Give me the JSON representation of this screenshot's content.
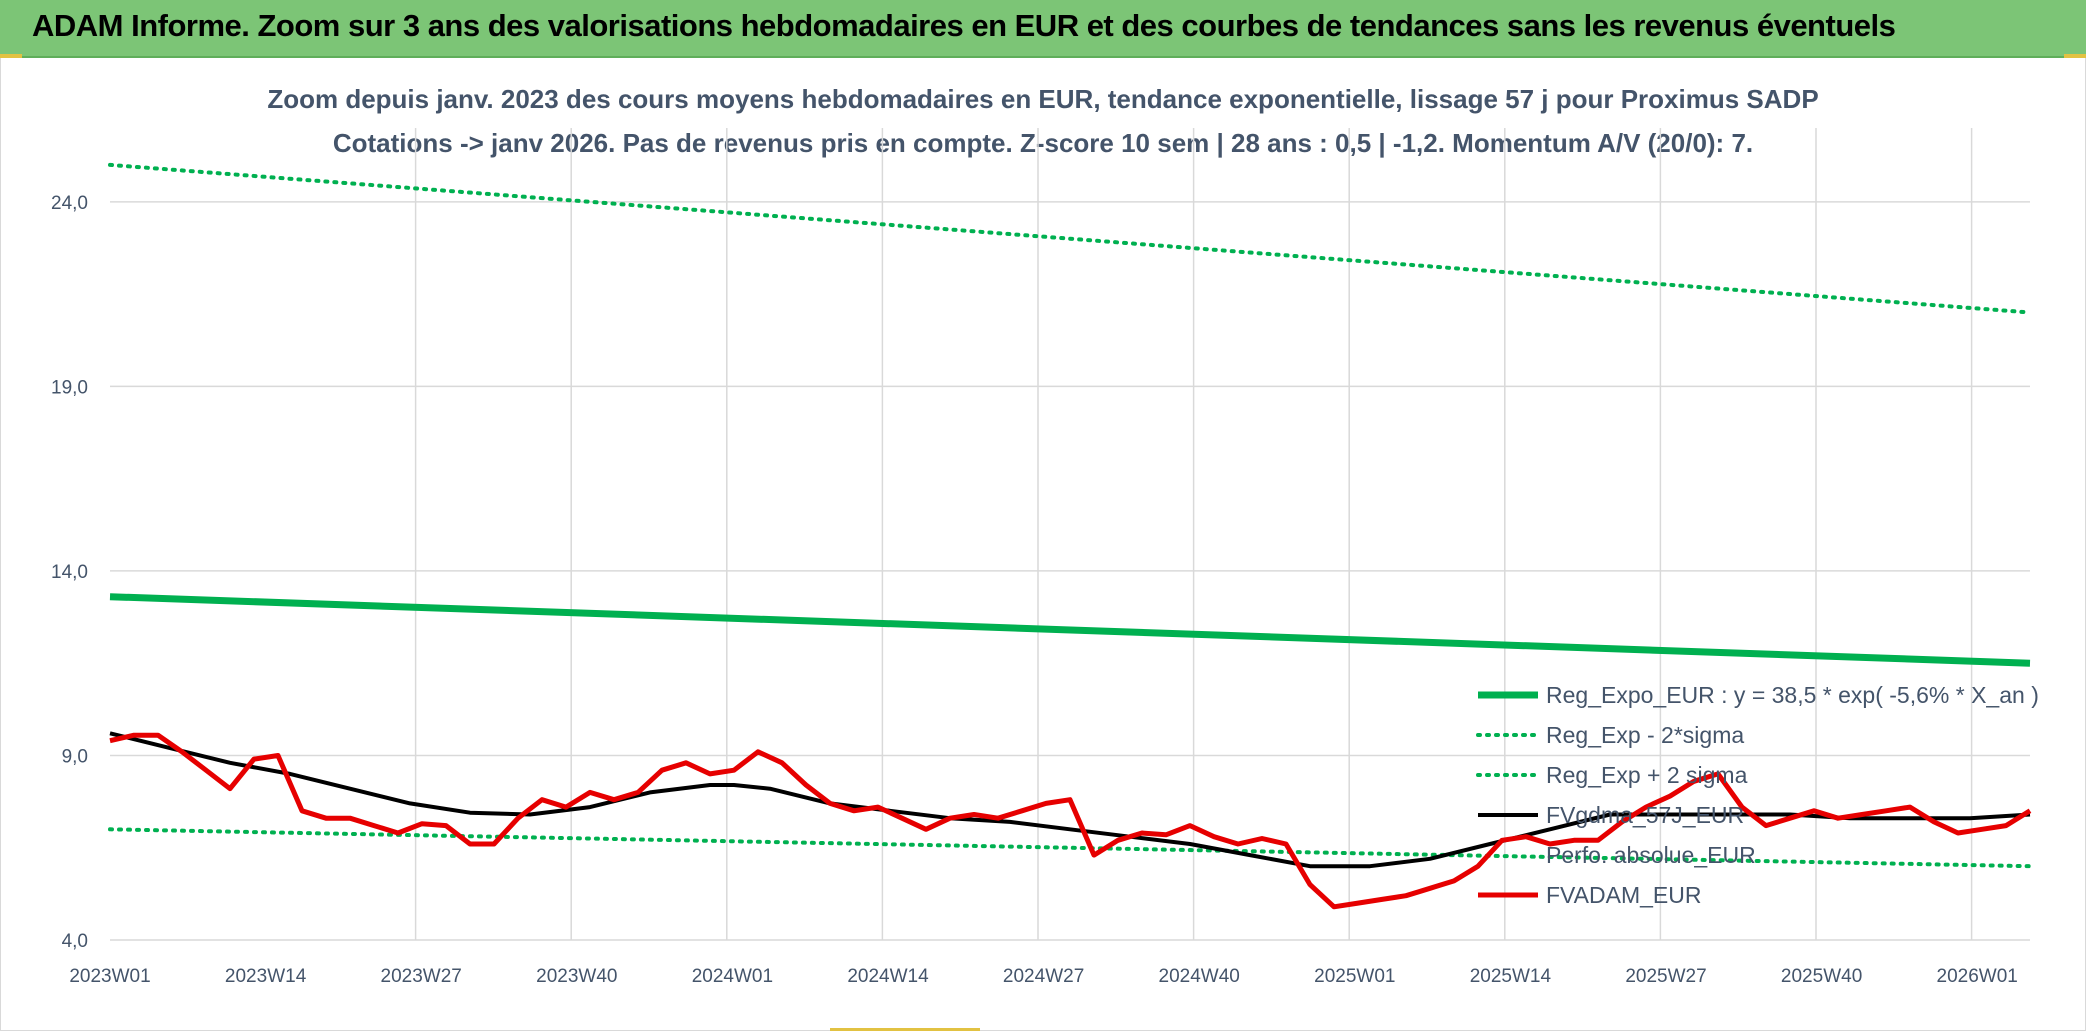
{
  "header": {
    "title": "ADAM Informe. Zoom sur 3 ans des valorisations hebdomadaires en EUR et des courbes de tendances sans les revenus éventuels"
  },
  "chart_data": {
    "type": "line",
    "title_line1": "Zoom depuis janv. 2023 des cours moyens hebdomadaires en EUR, tendance exponentielle, lissage 57 j pour Proximus SADP",
    "title_line2": "Cotations -> janv 2026. Pas de revenus pris en compte. Z-score 10 sem | 28 ans : 0,5 | -1,2. Momentum A/V (20/0): 7.",
    "x_ticks": [
      "2023W01",
      "2023W14",
      "2023W27",
      "2023W40",
      "2024W01",
      "2024W14",
      "2024W27",
      "2024W40",
      "2025W01",
      "2025W14",
      "2025W27",
      "2025W40",
      "2026W01"
    ],
    "y_ticks": [
      "4,0",
      "9,0",
      "14,0",
      "19,0",
      "24,0"
    ],
    "ylim": [
      4,
      26
    ],
    "grid": true,
    "legend_position": "bottom-right",
    "colors": {
      "reg_expo": "#00b050",
      "sigma": "#00b050",
      "fvgdma": "#000000",
      "fvadam": "#e60000",
      "grid": "#d9d9d9",
      "axis_text": "#44546a"
    },
    "series": [
      {
        "name": "Reg_Expo_EUR : y = 38,5 * exp( -5,6% *  X_an )",
        "style": "solid-thick",
        "x": [
          0,
          160
        ],
        "y": [
          13.3,
          11.5
        ]
      },
      {
        "name": "Reg_Exp - 2*sigma",
        "style": "dotted",
        "x": [
          0,
          160
        ],
        "y": [
          7.0,
          6.0
        ]
      },
      {
        "name": "Reg_Exp + 2 sigma",
        "style": "dotted",
        "x": [
          0,
          160
        ],
        "y": [
          25.0,
          21.0
        ]
      },
      {
        "name": "FVgdma_57J_EUR",
        "style": "solid",
        "x": [
          0,
          5,
          10,
          15,
          20,
          25,
          30,
          35,
          40,
          45,
          50,
          52,
          55,
          60,
          65,
          70,
          75,
          80,
          85,
          90,
          95,
          100,
          105,
          110,
          115,
          120,
          125,
          130,
          135,
          140,
          145,
          150,
          155,
          160
        ],
        "y": [
          9.6,
          9.2,
          8.8,
          8.5,
          8.1,
          7.7,
          7.45,
          7.4,
          7.6,
          8.0,
          8.2,
          8.2,
          8.1,
          7.7,
          7.5,
          7.3,
          7.2,
          7.0,
          6.8,
          6.6,
          6.3,
          6.0,
          6.0,
          6.2,
          6.6,
          7.0,
          7.4,
          7.4,
          7.4,
          7.4,
          7.3,
          7.3,
          7.3,
          7.4
        ]
      },
      {
        "name": "Perfo. absolue_EUR",
        "style": "none",
        "x": [],
        "y": []
      },
      {
        "name": "FVADAM_EUR",
        "style": "solid-red",
        "x": [
          0,
          2,
          4,
          6,
          8,
          10,
          12,
          14,
          16,
          18,
          20,
          22,
          24,
          26,
          28,
          30,
          32,
          34,
          36,
          38,
          40,
          42,
          44,
          46,
          48,
          50,
          52,
          54,
          56,
          58,
          60,
          62,
          64,
          66,
          68,
          70,
          72,
          74,
          76,
          78,
          80,
          82,
          84,
          86,
          88,
          90,
          92,
          94,
          96,
          98,
          100,
          102,
          104,
          106,
          108,
          110,
          112,
          114,
          116,
          118,
          120,
          122,
          124,
          126,
          128,
          130,
          132,
          134,
          136,
          138,
          140,
          142,
          144,
          146,
          148,
          150,
          152,
          154,
          156,
          158,
          160
        ],
        "y": [
          9.4,
          9.55,
          9.55,
          9.1,
          8.6,
          8.1,
          8.9,
          9.0,
          7.5,
          7.3,
          7.3,
          7.1,
          6.9,
          7.15,
          7.1,
          6.6,
          6.6,
          7.3,
          7.8,
          7.6,
          8.0,
          7.8,
          8.0,
          8.6,
          8.8,
          8.5,
          8.6,
          9.1,
          8.8,
          8.2,
          7.7,
          7.5,
          7.6,
          7.3,
          7.0,
          7.3,
          7.4,
          7.3,
          7.5,
          7.7,
          7.8,
          6.3,
          6.7,
          6.9,
          6.85,
          7.1,
          6.8,
          6.6,
          6.75,
          6.6,
          5.5,
          4.9,
          5.0,
          5.1,
          5.2,
          5.4,
          5.6,
          6.0,
          6.7,
          6.8,
          6.6,
          6.7,
          6.7,
          7.2,
          7.6,
          7.9,
          8.3,
          8.5,
          7.6,
          7.1,
          7.3,
          7.5,
          7.3,
          7.4,
          7.5,
          7.6,
          7.2,
          6.9,
          7.0,
          7.1,
          7.5
        ]
      }
    ]
  }
}
